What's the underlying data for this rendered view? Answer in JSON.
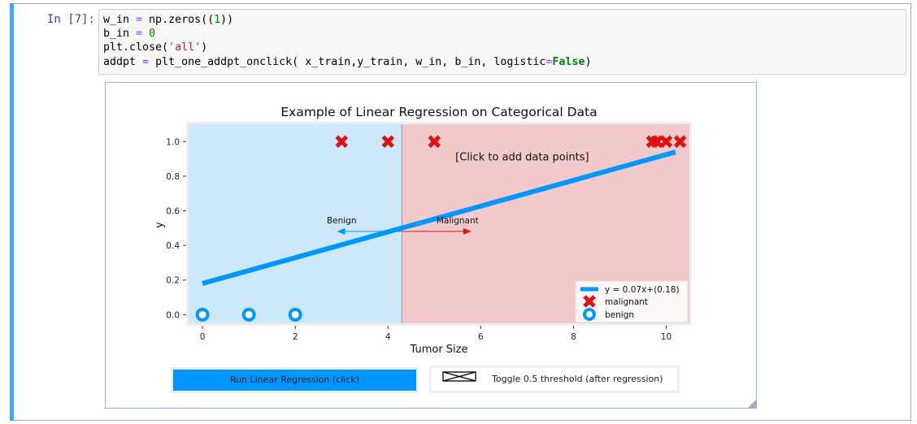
{
  "cell": {
    "prompt": "In [7]:",
    "code": {
      "line1": [
        "w_in ",
        "=",
        " np.zeros((",
        "1",
        "))"
      ],
      "line2": [
        "b_in ",
        "=",
        " ",
        "0"
      ],
      "line3": [
        "plt.close(",
        "'all'",
        ")"
      ],
      "line4": [
        "addpt ",
        "=",
        " plt_one_addpt_onclick( x_train,y_train, w_in, b_in, logistic",
        "=",
        "False",
        ")"
      ]
    }
  },
  "chart_data": {
    "type": "scatter",
    "title": "Example of Linear Regression on Categorical Data",
    "xlabel": "Tumor Size",
    "ylabel": "y",
    "xlim": [
      -0.3,
      10.5
    ],
    "ylim": [
      -0.05,
      1.1
    ],
    "xticks": [
      0,
      2,
      4,
      6,
      8,
      10
    ],
    "yticks": [
      0.0,
      0.2,
      0.4,
      0.6,
      0.8,
      1.0
    ],
    "grid": false,
    "legend_position": "lower-right",
    "series": [
      {
        "name": "y = 0.07x+(0.18)",
        "kind": "line",
        "color": "#0096ff",
        "x": [
          0,
          10.2
        ],
        "y": [
          0.18,
          0.94
        ]
      },
      {
        "name": "malignant",
        "kind": "marker-x",
        "color": "#dd1111",
        "x": [
          3,
          4,
          5,
          9.7,
          9.8,
          10.0,
          10.3
        ],
        "y": [
          1,
          1,
          1,
          1,
          1,
          1,
          1
        ]
      },
      {
        "name": "benign",
        "kind": "marker-o",
        "color": "#0096ff",
        "x": [
          0,
          1,
          2
        ],
        "y": [
          0,
          0,
          0
        ]
      }
    ],
    "threshold_x": 4.3,
    "regions": {
      "benign_color": "#cce8fa",
      "malignant_color": "#f2cacc"
    },
    "annotations": {
      "click_hint": "[Click to add data points]",
      "benign_label": "Benign",
      "malignant_label": "Malignant"
    }
  },
  "buttons": {
    "run": "Run Linear Regression (click)",
    "toggle": "Toggle 0.5 threshold (after regression)"
  }
}
